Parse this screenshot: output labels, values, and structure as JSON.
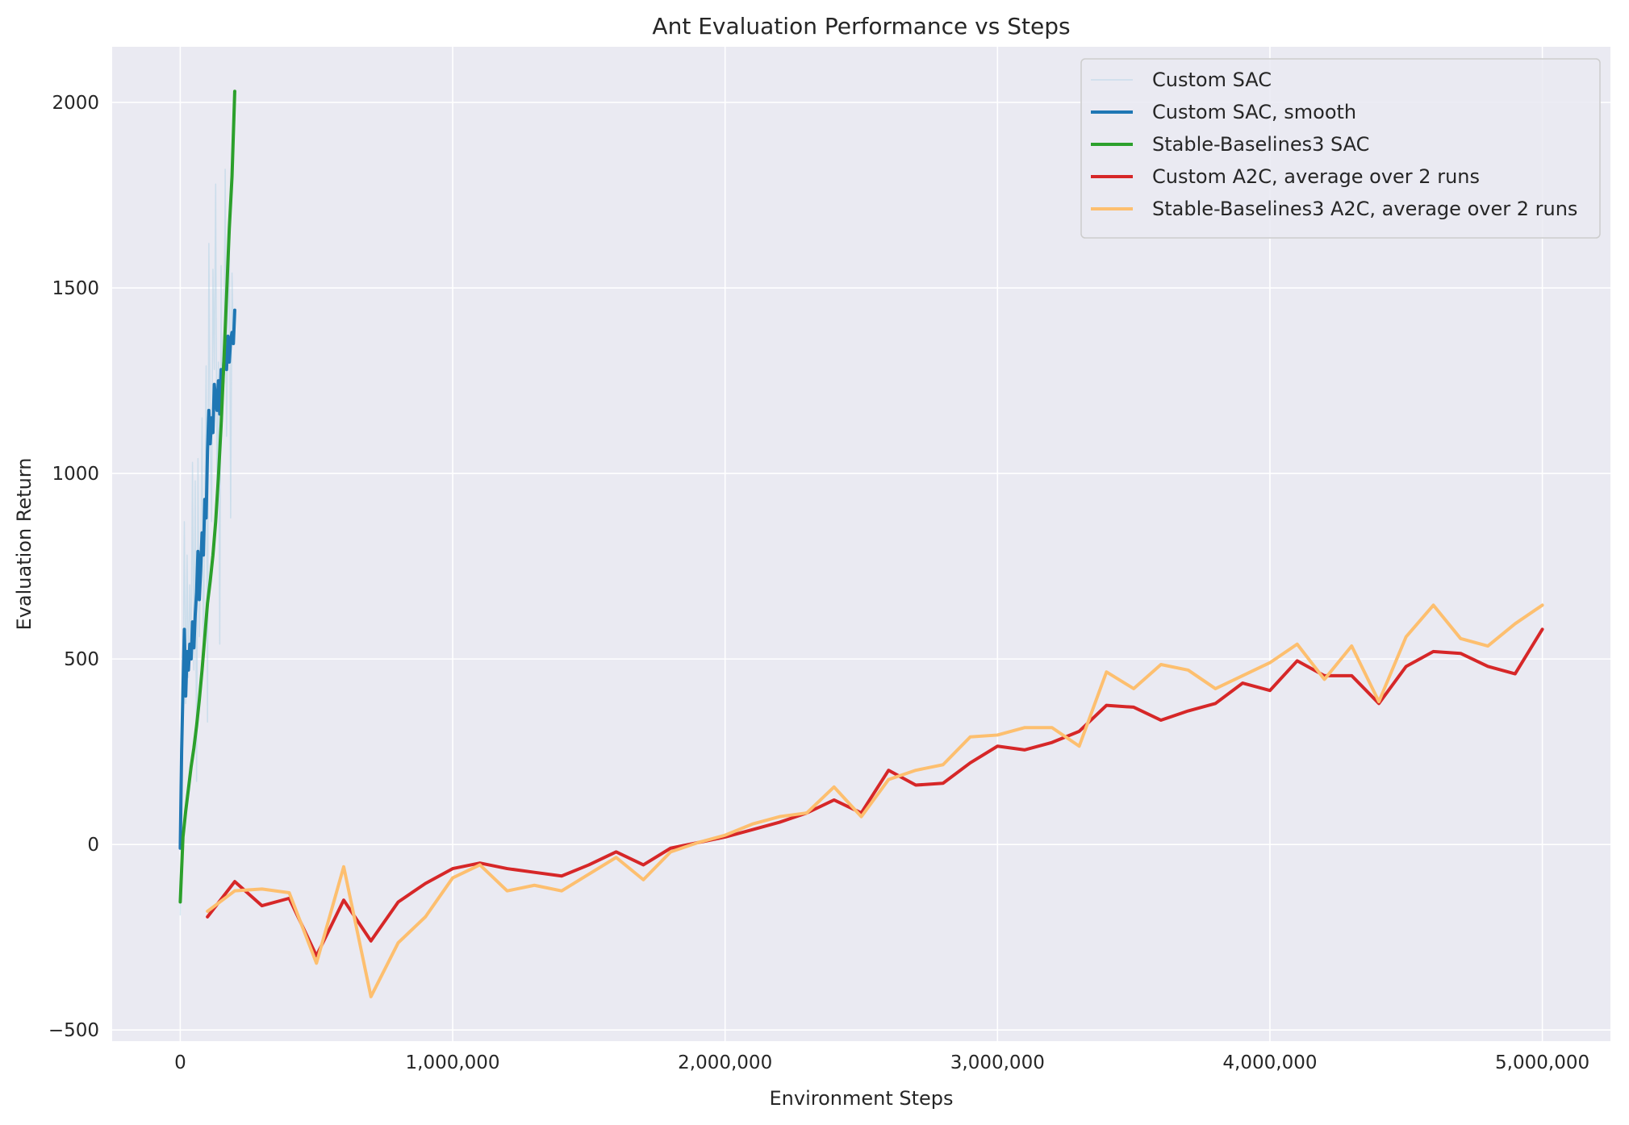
{
  "chart_data": {
    "type": "line",
    "title": "Ant Evaluation Performance vs Steps",
    "xlabel": "Environment Steps",
    "ylabel": "Evaluation Return",
    "xlim": [
      -250000,
      5250000
    ],
    "ylim": [
      -530,
      2150
    ],
    "grid": true,
    "legend_position": "top-right",
    "x_ticks": [
      0,
      1000000,
      2000000,
      3000000,
      4000000,
      5000000
    ],
    "x_tick_labels": [
      "0",
      "1,000,000",
      "2,000,000",
      "3,000,000",
      "4,000,000",
      "5,000,000"
    ],
    "y_ticks": [
      -500,
      0,
      500,
      1000,
      1500,
      2000
    ],
    "y_tick_labels": [
      "−500",
      "0",
      "500",
      "1000",
      "1500",
      "2000"
    ],
    "series": [
      {
        "name": "Custom SAC",
        "color": "#a6cee3",
        "opacity": 0.45,
        "width": 1.5,
        "x": [
          0,
          5000,
          10000,
          15000,
          20000,
          25000,
          30000,
          35000,
          40000,
          45000,
          50000,
          55000,
          60000,
          65000,
          70000,
          75000,
          80000,
          85000,
          90000,
          95000,
          100000,
          105000,
          110000,
          115000,
          120000,
          125000,
          130000,
          135000,
          140000,
          145000,
          150000,
          155000,
          160000,
          165000,
          170000,
          175000,
          180000,
          185000,
          190000,
          195000,
          200000
        ],
        "y": [
          -190,
          120,
          420,
          870,
          380,
          780,
          450,
          700,
          520,
          1030,
          470,
          980,
          170,
          1040,
          560,
          750,
          1150,
          480,
          900,
          1290,
          330,
          1620,
          1110,
          870,
          1550,
          1280,
          1780,
          880,
          1300,
          540,
          1560,
          1140,
          1250,
          1820,
          1100,
          1420,
          1650,
          880,
          1540,
          1350,
          1420
        ]
      },
      {
        "name": "Custom SAC, smooth",
        "color": "#1f77b4",
        "opacity": 1,
        "width": 4,
        "x": [
          0,
          5000,
          10000,
          15000,
          20000,
          25000,
          30000,
          35000,
          40000,
          45000,
          50000,
          55000,
          60000,
          65000,
          70000,
          75000,
          80000,
          85000,
          90000,
          95000,
          100000,
          105000,
          110000,
          115000,
          120000,
          125000,
          130000,
          135000,
          140000,
          145000,
          150000,
          155000,
          160000,
          165000,
          170000,
          175000,
          180000,
          185000,
          190000,
          195000,
          200000
        ],
        "y": [
          -10,
          250,
          420,
          580,
          400,
          520,
          470,
          540,
          500,
          600,
          530,
          620,
          680,
          790,
          660,
          740,
          840,
          780,
          930,
          880,
          1060,
          1170,
          1080,
          1150,
          1110,
          1240,
          1200,
          1170,
          1250,
          1160,
          1280,
          1230,
          1300,
          1340,
          1280,
          1370,
          1300,
          1360,
          1380,
          1350,
          1440
        ]
      },
      {
        "name": "Stable-Baselines3 SAC",
        "color": "#2ca02c",
        "opacity": 1,
        "width": 4,
        "x": [
          0,
          10000,
          20000,
          30000,
          40000,
          50000,
          60000,
          70000,
          80000,
          90000,
          100000,
          110000,
          120000,
          130000,
          140000,
          150000,
          160000,
          170000,
          180000,
          190000,
          200000
        ],
        "y": [
          -155,
          20,
          90,
          150,
          210,
          260,
          320,
          390,
          470,
          560,
          650,
          710,
          780,
          870,
          990,
          1130,
          1300,
          1480,
          1660,
          1800,
          2030
        ]
      },
      {
        "name": "Custom A2C, average over 2 runs",
        "color": "#d62728",
        "opacity": 1,
        "width": 4,
        "x": [
          100000,
          200000,
          300000,
          400000,
          500000,
          600000,
          700000,
          800000,
          900000,
          1000000,
          1100000,
          1200000,
          1300000,
          1400000,
          1500000,
          1600000,
          1700000,
          1800000,
          1900000,
          2000000,
          2100000,
          2200000,
          2300000,
          2400000,
          2500000,
          2600000,
          2700000,
          2800000,
          2900000,
          3000000,
          3100000,
          3200000,
          3300000,
          3400000,
          3500000,
          3600000,
          3700000,
          3800000,
          3900000,
          4000000,
          4100000,
          4200000,
          4300000,
          4400000,
          4500000,
          4600000,
          4700000,
          4800000,
          4900000,
          5000000
        ],
        "y": [
          -195,
          -100,
          -165,
          -145,
          -300,
          -150,
          -260,
          -155,
          -105,
          -65,
          -50,
          -65,
          -75,
          -85,
          -55,
          -20,
          -55,
          -10,
          5,
          20,
          40,
          60,
          85,
          120,
          85,
          200,
          160,
          165,
          220,
          265,
          255,
          275,
          305,
          375,
          370,
          335,
          360,
          380,
          435,
          415,
          495,
          455,
          455,
          380,
          480,
          520,
          515,
          480,
          460,
          580
        ]
      },
      {
        "name": "Stable-Baselines3 A2C, average over 2 runs",
        "color": "#fdbf6f",
        "opacity": 1,
        "width": 4,
        "x": [
          100000,
          200000,
          300000,
          400000,
          500000,
          600000,
          700000,
          800000,
          900000,
          1000000,
          1100000,
          1200000,
          1300000,
          1400000,
          1500000,
          1600000,
          1700000,
          1800000,
          1900000,
          2000000,
          2100000,
          2200000,
          2300000,
          2400000,
          2500000,
          2600000,
          2700000,
          2800000,
          2900000,
          3000000,
          3100000,
          3200000,
          3300000,
          3400000,
          3500000,
          3600000,
          3700000,
          3800000,
          3900000,
          4000000,
          4100000,
          4200000,
          4300000,
          4400000,
          4500000,
          4600000,
          4700000,
          4800000,
          4900000,
          5000000
        ],
        "y": [
          -180,
          -125,
          -120,
          -130,
          -320,
          -60,
          -410,
          -265,
          -195,
          -90,
          -55,
          -125,
          -110,
          -125,
          -80,
          -35,
          -95,
          -20,
          5,
          25,
          55,
          75,
          85,
          155,
          75,
          175,
          200,
          215,
          290,
          295,
          315,
          315,
          265,
          465,
          420,
          485,
          470,
          420,
          455,
          490,
          540,
          445,
          535,
          385,
          560,
          645,
          555,
          535,
          595,
          645
        ]
      }
    ]
  }
}
